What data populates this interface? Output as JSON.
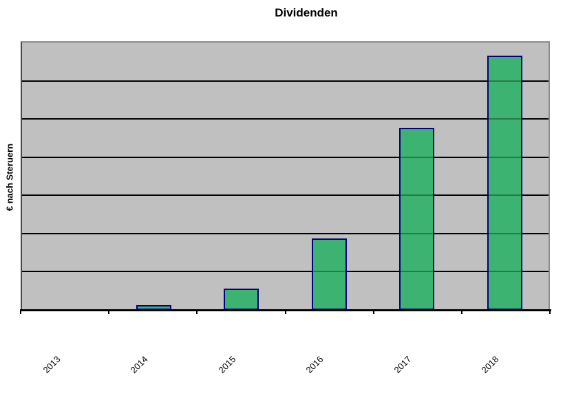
{
  "title": "Dividenden",
  "chart_data": {
    "type": "bar",
    "title": "Dividenden",
    "xlabel": "",
    "ylabel": "€ nach Steruern",
    "categories": [
      "2013",
      "2014",
      "2015",
      "2016",
      "2017",
      "2018"
    ],
    "series": [
      {
        "name": "Dividenden",
        "values_pct_of_ymax": [
          0,
          1.8,
          8.0,
          26.7,
          68.1,
          95.1
        ]
      }
    ],
    "y_axis": {
      "tick_labels": [],
      "gridline_divisions": 7,
      "note": "no numeric y-axis labels visible in image; bar values estimated as percent of axis maximum from gridlines"
    },
    "x_axis": {
      "label_rotation_deg": -45,
      "tick_marks_at_category_boundaries": true
    },
    "legend": "none",
    "grid": "horizontal",
    "plot_bg": "#c0c0c0"
  },
  "colors": {
    "background": "#ffffff",
    "plot_bg": "#c0c0c0",
    "plot_border": "#8c8c8c",
    "gridline": "#000000",
    "gridline_over_bar_alpha": "rgba(0,0,0,0.33)",
    "axis_line": "#000000",
    "bar_fill": "#3cb371",
    "bar_border": "#000080",
    "text": "#000000"
  }
}
